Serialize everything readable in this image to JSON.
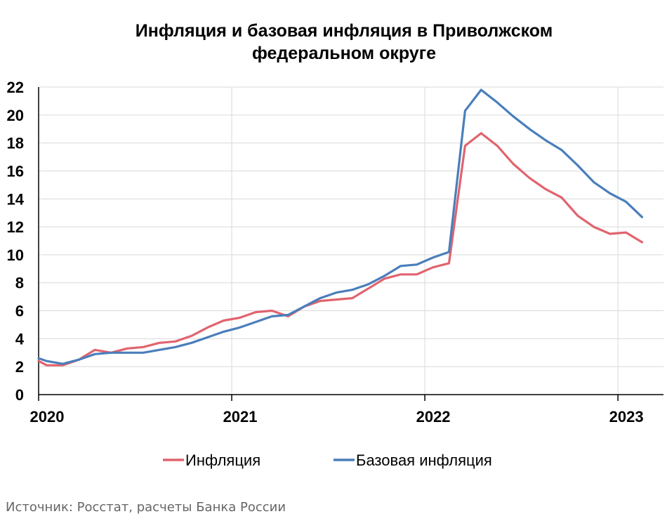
{
  "chart_data": {
    "type": "line",
    "title_lines": [
      "Инфляция и базовая инфляция в Приволжском",
      "федеральном округе"
    ],
    "ylim": [
      0,
      22
    ],
    "yticks": [
      "0",
      "2",
      "4",
      "6",
      "8",
      "10",
      "12",
      "14",
      "16",
      "18",
      "20",
      "22"
    ],
    "xlim": [
      0,
      37
    ],
    "xticks": [
      {
        "label": "2020",
        "month_index": 0
      },
      {
        "label": "2021",
        "month_index": 12
      },
      {
        "label": "2022",
        "month_index": 24
      },
      {
        "label": "2023",
        "month_index": 36
      }
    ],
    "grid": "vertical and horizontal",
    "legend_position": "bottom",
    "series": [
      {
        "name": "Инфляция",
        "color": "#E0646E",
        "x": [
          0,
          0.5,
          1.5,
          2.5,
          3.5,
          4.5,
          5.5,
          6.5,
          7.5,
          8.5,
          9.5,
          10.5,
          11.5,
          12.5,
          13.5,
          14.5,
          15.5,
          16.5,
          17.5,
          18.5,
          19.5,
          20.5,
          21.5,
          22.5,
          23.5,
          24.5,
          25.5,
          26.5,
          27.5,
          28.5,
          29.5,
          30.5,
          31.5,
          32.5,
          33.5,
          34.5,
          35.5,
          36.5,
          37.5
        ],
        "values": [
          2.4,
          2.1,
          2.1,
          2.5,
          3.2,
          3.0,
          3.3,
          3.4,
          3.7,
          3.8,
          4.2,
          4.8,
          5.3,
          5.5,
          5.9,
          6.0,
          5.6,
          6.3,
          6.7,
          6.8,
          6.9,
          7.6,
          8.3,
          8.6,
          8.6,
          9.1,
          9.4,
          17.8,
          18.7,
          17.8,
          16.5,
          15.5,
          14.7,
          14.1,
          12.8,
          12.0,
          11.5,
          11.6,
          10.9
        ]
      },
      {
        "name": "Базовая инфляция",
        "color": "#4A7EBB",
        "x": [
          0,
          0.5,
          1.5,
          2.5,
          3.5,
          4.5,
          5.5,
          6.5,
          7.5,
          8.5,
          9.5,
          10.5,
          11.5,
          12.5,
          13.5,
          14.5,
          15.5,
          16.5,
          17.5,
          18.5,
          19.5,
          20.5,
          21.5,
          22.5,
          23.5,
          24.5,
          25.5,
          26.5,
          27.5,
          28.5,
          29.5,
          30.5,
          31.5,
          32.5,
          33.5,
          34.5,
          35.5,
          36.5,
          37.5
        ],
        "values": [
          2.6,
          2.4,
          2.2,
          2.5,
          2.9,
          3.0,
          3.0,
          3.0,
          3.2,
          3.4,
          3.7,
          4.1,
          4.5,
          4.8,
          5.2,
          5.6,
          5.7,
          6.3,
          6.9,
          7.3,
          7.5,
          7.9,
          8.5,
          9.2,
          9.3,
          9.8,
          10.2,
          20.3,
          21.8,
          20.9,
          19.9,
          19.0,
          18.2,
          17.5,
          16.4,
          15.2,
          14.4,
          13.8,
          12.7
        ]
      }
    ]
  },
  "source": "Источник: Росстат, расчеты Банка России"
}
